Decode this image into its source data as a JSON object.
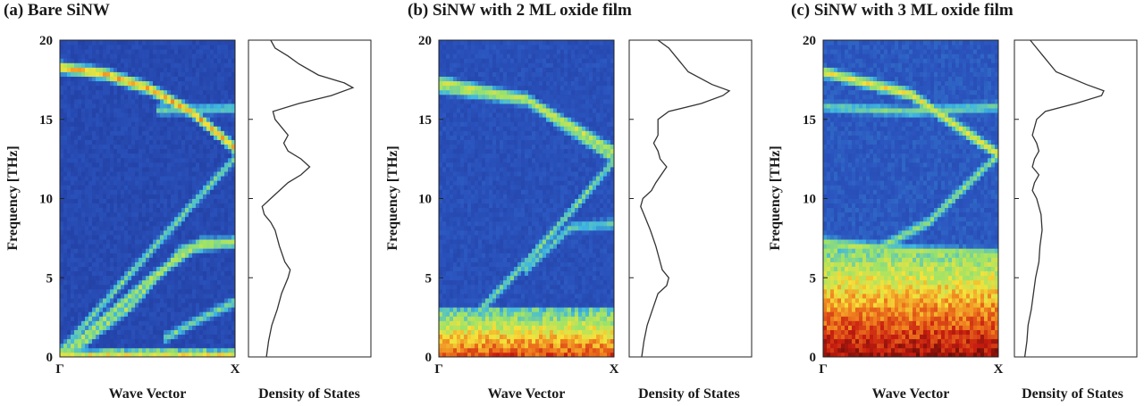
{
  "chart_data": [
    {
      "type": "heatmap",
      "panel_label": "(a) Bare SiNW",
      "xlabel": "Wave Vector",
      "ylabel": "Frequency [THz]",
      "ylim": [
        0,
        20
      ],
      "yticks": [
        0,
        5,
        10,
        15,
        20
      ],
      "xticks": [
        "Γ",
        "X"
      ],
      "colormap": [
        "#1a2a8a",
        "#2b55bf",
        "#3fb7e0",
        "#9be36a",
        "#f5e23a",
        "#ef7a1e",
        "#c71d10",
        "#6b0d08"
      ],
      "background_level": 0.08,
      "low_band": {
        "top": 0.6,
        "intensity": 0.38
      },
      "branches": [
        {
          "points": [
            [
              0.0,
              18.3
            ],
            [
              0.25,
              17.9
            ],
            [
              0.5,
              17.0
            ],
            [
              0.75,
              15.5
            ],
            [
              1.0,
              13.2
            ]
          ],
          "intensity": 0.62
        },
        {
          "points": [
            [
              0.0,
              0.0
            ],
            [
              0.5,
              4.8
            ],
            [
              0.8,
              7.2
            ],
            [
              1.0,
              7.2
            ]
          ],
          "intensity": 0.42
        },
        {
          "points": [
            [
              0.1,
              0.6
            ],
            [
              0.4,
              3.2
            ],
            [
              0.7,
              6.8
            ],
            [
              1.0,
              7.3
            ]
          ],
          "intensity": 0.4
        },
        {
          "points": [
            [
              0.0,
              0.3
            ],
            [
              0.5,
              6.5
            ],
            [
              1.0,
              12.6
            ]
          ],
          "intensity": 0.34
        },
        {
          "points": [
            [
              0.55,
              15.6
            ],
            [
              1.0,
              15.7
            ]
          ],
          "intensity": 0.3
        },
        {
          "points": [
            [
              0.6,
              1.2
            ],
            [
              0.8,
              2.4
            ],
            [
              1.0,
              3.5
            ]
          ],
          "intensity": 0.32
        }
      ],
      "dos_label": "Density of States",
      "dos": {
        "frequency": [
          0,
          1,
          2,
          3,
          4,
          5,
          5.5,
          6,
          7,
          8,
          8.5,
          9,
          9.5,
          10,
          11,
          11.5,
          12,
          12.5,
          13,
          13.5,
          14,
          15,
          15.5,
          16,
          16.5,
          17,
          17.3,
          17.8,
          18.5,
          19,
          19.5,
          20
        ],
        "value": [
          0.1,
          0.12,
          0.15,
          0.2,
          0.24,
          0.3,
          0.32,
          0.27,
          0.22,
          0.18,
          0.14,
          0.08,
          0.06,
          0.14,
          0.3,
          0.42,
          0.5,
          0.42,
          0.3,
          0.26,
          0.3,
          0.18,
          0.16,
          0.4,
          0.7,
          0.9,
          0.82,
          0.58,
          0.4,
          0.3,
          0.18,
          0.14
        ]
      }
    },
    {
      "type": "heatmap",
      "panel_label": "(b) SiNW with 2 ML oxide film",
      "xlabel": "Wave Vector",
      "ylabel": "Frequency [THz]",
      "ylim": [
        0,
        20
      ],
      "yticks": [
        0,
        5,
        10,
        15,
        20
      ],
      "xticks": [
        "Γ",
        "X"
      ],
      "colormap": [
        "#1a2a8a",
        "#2b55bf",
        "#3fb7e0",
        "#9be36a",
        "#f5e23a",
        "#ef7a1e",
        "#c71d10",
        "#6b0d08"
      ],
      "background_level": 0.1,
      "low_band": {
        "top": 3.2,
        "intensity": 0.55
      },
      "branches": [
        {
          "points": [
            [
              0.0,
              17.4
            ],
            [
              0.5,
              16.3
            ],
            [
              1.0,
              13.0
            ]
          ],
          "intensity": 0.45
        },
        {
          "points": [
            [
              0.0,
              17.0
            ],
            [
              0.5,
              16.2
            ],
            [
              1.0,
              12.5
            ]
          ],
          "intensity": 0.38
        },
        {
          "points": [
            [
              0.15,
              2.0
            ],
            [
              0.5,
              6.0
            ],
            [
              0.8,
              9.8
            ],
            [
              1.0,
              12.4
            ]
          ],
          "intensity": 0.33
        },
        {
          "points": [
            [
              0.5,
              5.5
            ],
            [
              0.75,
              8.2
            ],
            [
              1.0,
              8.4
            ]
          ],
          "intensity": 0.28
        }
      ],
      "dos_label": "Density of States",
      "dos": {
        "frequency": [
          0,
          1,
          2,
          3,
          4,
          4.5,
          5,
          5.5,
          6,
          7,
          8,
          9,
          9.5,
          10,
          10.5,
          11,
          12,
          12.5,
          13,
          13.5,
          14,
          15,
          15.5,
          16,
          16.5,
          16.8,
          17.2,
          18,
          19,
          19.5,
          20
        ],
        "value": [
          0.05,
          0.07,
          0.1,
          0.15,
          0.2,
          0.28,
          0.3,
          0.24,
          0.22,
          0.18,
          0.13,
          0.07,
          0.04,
          0.06,
          0.14,
          0.18,
          0.28,
          0.22,
          0.2,
          0.16,
          0.2,
          0.2,
          0.3,
          0.6,
          0.8,
          0.86,
          0.7,
          0.48,
          0.36,
          0.3,
          0.2
        ]
      }
    },
    {
      "type": "heatmap",
      "panel_label": "(c) SiNW with 3 ML oxide film",
      "xlabel": "Wave Vector",
      "ylabel": "Frequency [THz]",
      "ylim": [
        0,
        20
      ],
      "yticks": [
        0,
        5,
        10,
        15,
        20
      ],
      "xticks": [
        "Γ",
        "X"
      ],
      "colormap": [
        "#1a2a8a",
        "#2b55bf",
        "#3fb7e0",
        "#9be36a",
        "#f5e23a",
        "#ef7a1e",
        "#c71d10",
        "#6b0d08"
      ],
      "background_level": 0.12,
      "low_band": {
        "top": 6.8,
        "intensity": 0.68
      },
      "branches": [
        {
          "points": [
            [
              0.0,
              18.0
            ],
            [
              0.5,
              16.6
            ],
            [
              1.0,
              12.8
            ]
          ],
          "intensity": 0.5
        },
        {
          "points": [
            [
              0.0,
              15.8
            ],
            [
              0.5,
              15.5
            ],
            [
              1.0,
              15.8
            ]
          ],
          "intensity": 0.3
        },
        {
          "points": [
            [
              0.0,
              7.3
            ],
            [
              0.3,
              6.8
            ],
            [
              0.6,
              8.5
            ],
            [
              1.0,
              12.8
            ]
          ],
          "intensity": 0.35
        },
        {
          "points": [
            [
              0.0,
              7.2
            ],
            [
              0.5,
              6.7
            ],
            [
              1.0,
              6.5
            ]
          ],
          "intensity": 0.4
        }
      ],
      "dos_label": "Density of States",
      "dos": {
        "frequency": [
          0,
          1,
          2,
          3,
          4,
          5,
          6,
          7,
          8,
          9,
          10,
          10.5,
          11,
          11.5,
          12,
          12.5,
          13,
          13.5,
          14,
          15,
          15.5,
          16,
          16.5,
          16.8,
          17.2,
          18,
          19,
          19.5,
          20
        ],
        "value": [
          0.03,
          0.05,
          0.06,
          0.09,
          0.11,
          0.13,
          0.16,
          0.17,
          0.19,
          0.18,
          0.14,
          0.1,
          0.12,
          0.16,
          0.1,
          0.12,
          0.16,
          0.14,
          0.1,
          0.14,
          0.22,
          0.5,
          0.74,
          0.76,
          0.6,
          0.32,
          0.2,
          0.14,
          0.08
        ]
      }
    }
  ]
}
